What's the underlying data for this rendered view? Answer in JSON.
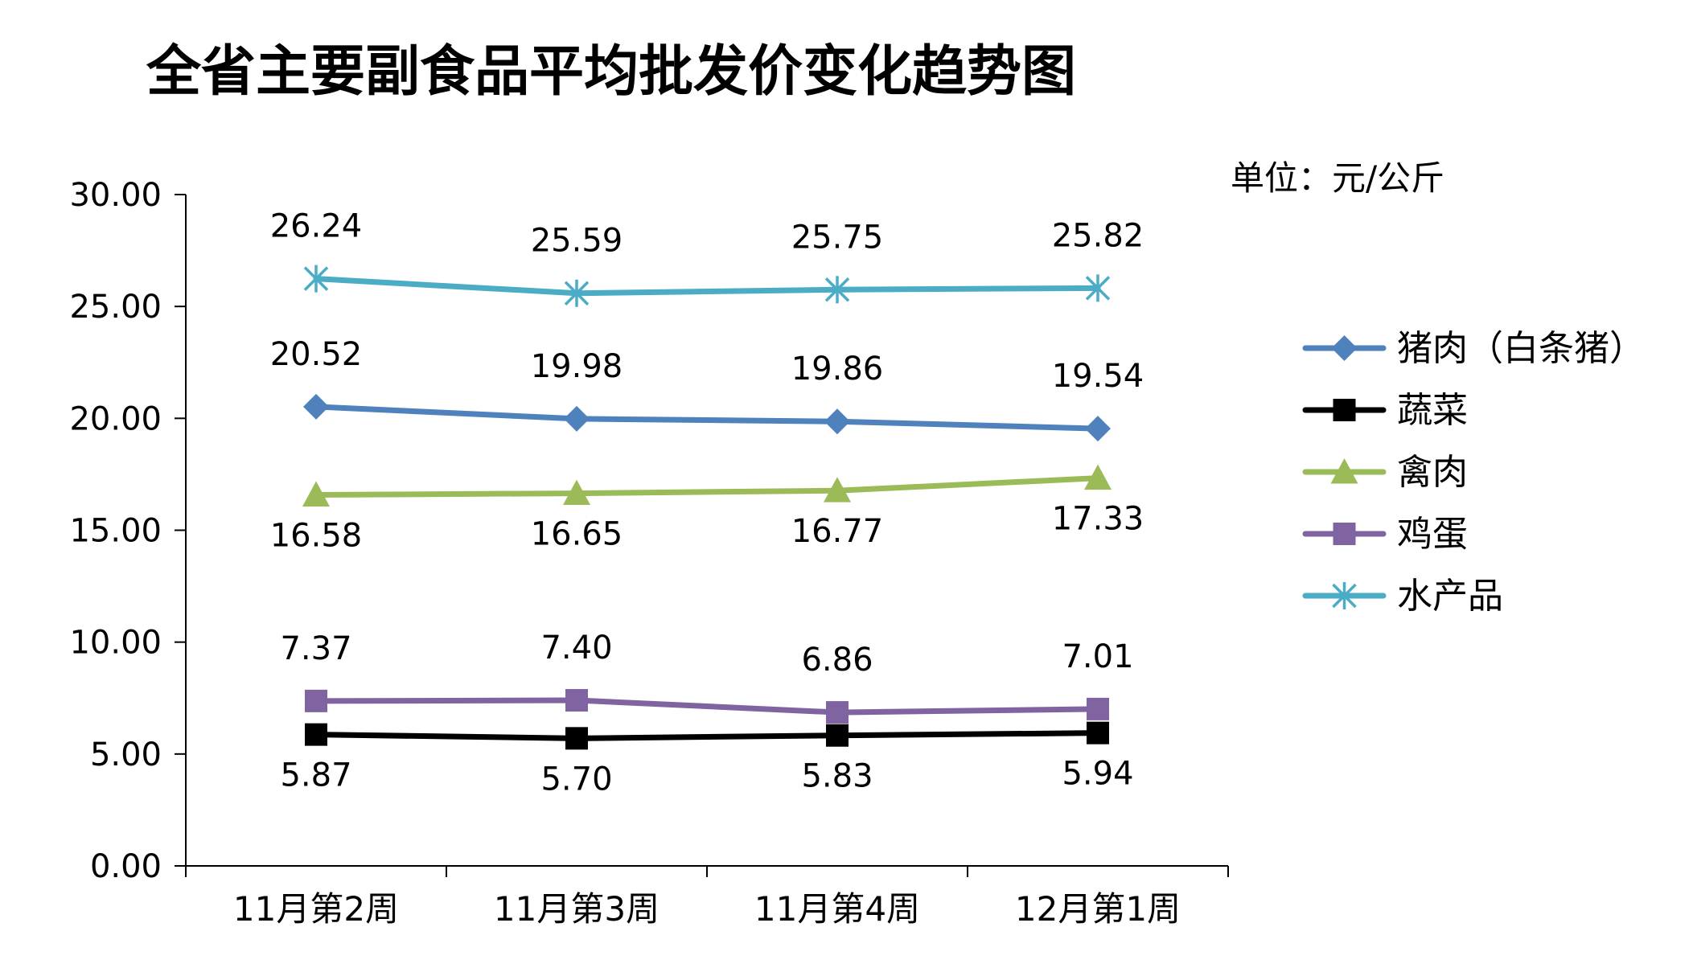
{
  "chart_data": {
    "type": "line",
    "title": "全省主要副食品平均批发价变化趋势图",
    "unit_label": "单位：元/公斤",
    "categories": [
      "11月第2周",
      "11月第3周",
      "11月第4周",
      "12月第1周"
    ],
    "ylim": [
      0,
      30
    ],
    "y_ticks": [
      "0.00",
      "5.00",
      "10.00",
      "15.00",
      "20.00",
      "25.00",
      "30.00"
    ],
    "grid": false,
    "legend_position": "right",
    "series": [
      {
        "name": "猪肉（白条猪）",
        "values": [
          20.52,
          19.98,
          19.86,
          19.54
        ],
        "labels": [
          "20.52",
          "19.98",
          "19.86",
          "19.54"
        ],
        "color": "#4F81BD",
        "marker": "diamond",
        "label_position": "above"
      },
      {
        "name": "蔬菜",
        "values": [
          5.87,
          5.7,
          5.83,
          5.94
        ],
        "labels": [
          "5.87",
          "5.70",
          "5.83",
          "5.94"
        ],
        "color": "#000000",
        "marker": "square",
        "label_position": "below"
      },
      {
        "name": "禽肉",
        "values": [
          16.58,
          16.65,
          16.77,
          17.33
        ],
        "labels": [
          "16.58",
          "16.65",
          "16.77",
          "17.33"
        ],
        "color": "#9BBB59",
        "marker": "triangle",
        "label_position": "below"
      },
      {
        "name": "鸡蛋",
        "values": [
          7.37,
          7.4,
          6.86,
          7.01
        ],
        "labels": [
          "7.37",
          "7.40",
          "6.86",
          "7.01"
        ],
        "color": "#8064A2",
        "marker": "square",
        "label_position": "above"
      },
      {
        "name": "水产品",
        "values": [
          26.24,
          25.59,
          25.75,
          25.82
        ],
        "labels": [
          "26.24",
          "25.59",
          "25.75",
          "25.82"
        ],
        "color": "#4BACC6",
        "marker": "asterisk",
        "label_position": "above"
      }
    ]
  }
}
